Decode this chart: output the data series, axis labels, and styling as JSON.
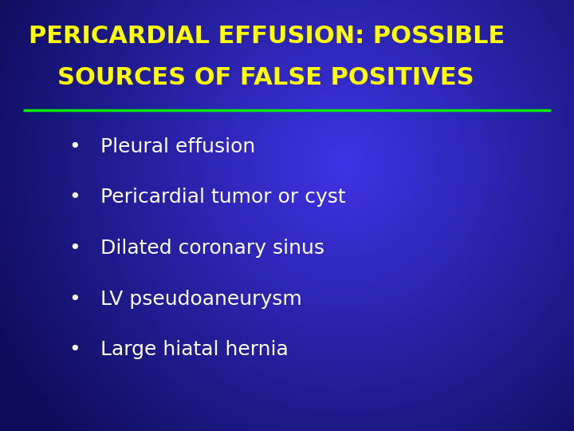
{
  "title_line1": "PERICARDIAL EFFUSION: POSSIBLE",
  "title_line2": "SOURCES OF FALSE POSITIVES",
  "title_color": "#FFFF00",
  "title_fontsize": 22,
  "bullet_items": [
    "Pleural effusion",
    "Pericardial tumor or cyst",
    "Dilated coronary sinus",
    "LV pseudoaneurysm",
    "Large hiatal hernia"
  ],
  "bullet_color": "#FFFFFF",
  "bullet_fontsize": 18,
  "separator_color": "#00EE00",
  "separator_linewidth": 2.5,
  "figsize": [
    7.2,
    5.4
  ],
  "dpi": 100
}
